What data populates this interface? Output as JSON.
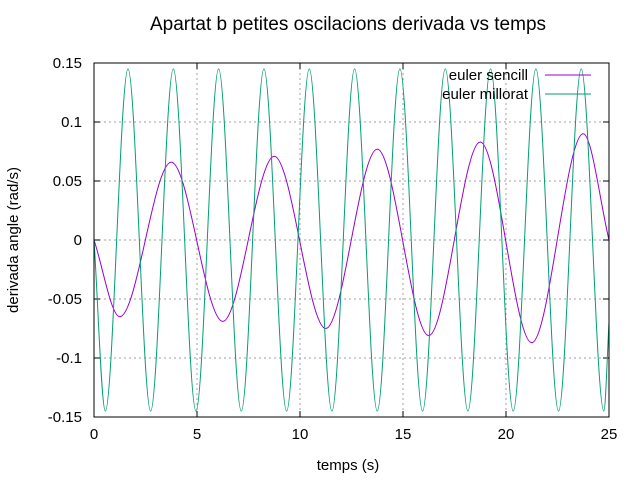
{
  "chart_data": {
    "type": "line",
    "title": "Apartat b petites oscilacions derivada vs temps",
    "xlabel": "temps (s)",
    "ylabel": "derivada angle (rad/s)",
    "xlim": [
      0,
      25
    ],
    "ylim": [
      -0.15,
      0.15
    ],
    "xticks": [
      0,
      5,
      10,
      15,
      20,
      25
    ],
    "xtick_labels": [
      "0",
      "5",
      "10",
      "15",
      "20",
      "25"
    ],
    "yticks": [
      -0.15,
      -0.1,
      -0.05,
      0,
      0.05,
      0.1,
      0.15
    ],
    "ytick_labels": [
      "-0.15",
      "-0.1",
      "-0.05",
      "0",
      "0.05",
      "0.1",
      "0.15"
    ],
    "grid": true,
    "legend_position": "top-right",
    "series": [
      {
        "name": "euler sencill",
        "color": "#9400d3",
        "x": [
          0,
          1.25,
          3.75,
          6.25,
          8.75,
          11.25,
          13.75,
          16.25,
          18.75,
          21.25,
          23.75,
          25
        ],
        "y": [
          0,
          -0.065,
          0.066,
          -0.069,
          0.071,
          -0.075,
          0.077,
          -0.081,
          0.083,
          -0.087,
          0.09,
          0
        ]
      },
      {
        "name": "euler millorat",
        "color": "#009e73",
        "x": [
          0,
          0.55,
          1.65,
          2.75,
          3.85,
          4.95,
          6.05,
          7.15,
          8.25,
          9.35,
          10.45,
          11.55,
          12.65,
          13.75,
          14.85,
          15.95,
          17.05,
          18.15,
          19.25,
          20.35,
          21.45,
          22.55,
          23.65,
          24.75,
          25
        ],
        "y": [
          0,
          -0.145,
          0.145,
          -0.145,
          0.145,
          -0.145,
          0.145,
          -0.145,
          0.145,
          -0.145,
          0.145,
          -0.145,
          0.145,
          -0.145,
          0.145,
          -0.145,
          0.145,
          -0.145,
          0.145,
          -0.145,
          0.145,
          -0.145,
          0.145,
          -0.145,
          -0.07
        ]
      }
    ]
  }
}
